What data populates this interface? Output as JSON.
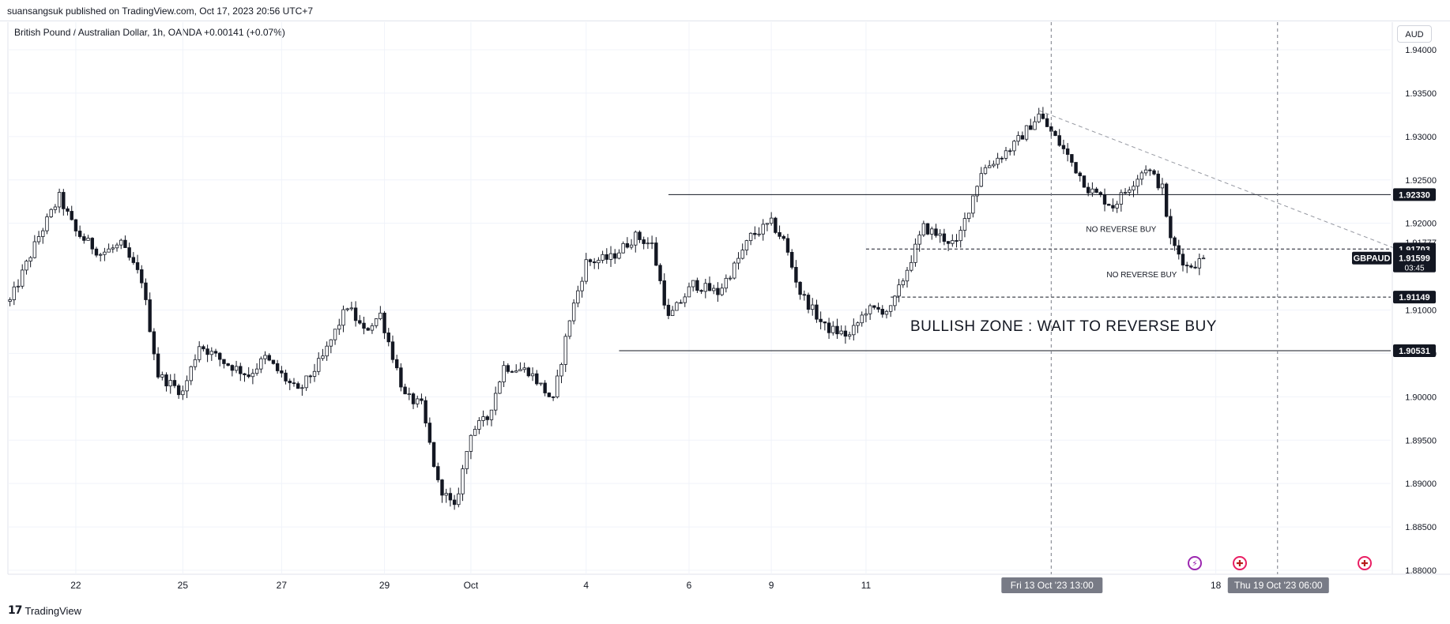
{
  "header": {
    "published": "suansangsuk published on TradingView.com, Oct 17, 2023 20:56 UTC+7"
  },
  "symbol_line": "British Pound / Australian Dollar, 1h, OANDA  +0.00141 (+0.07%)",
  "currency_button": "AUD",
  "footer": {
    "logo": "17",
    "brand": "TradingView"
  },
  "events": [
    {
      "icon": "lightning-icon",
      "glyph": "⚡"
    },
    {
      "icon": "uk-flag-icon",
      "glyph": "✚"
    },
    {
      "icon": "uk-flag-icon",
      "glyph": "✚"
    }
  ],
  "colors": {
    "background": "#ffffff",
    "grid": "#f0f3fa",
    "candle": "#131722",
    "label_bg": "#131722",
    "label_fg": "#ffffff",
    "time_label_bg": "#787b86",
    "trendline": "#9598a1"
  },
  "chart_data": {
    "type": "candlestick",
    "symbol": "GBPAUD",
    "interval": "1h",
    "exchange": "OANDA",
    "ylim": [
      1.88,
      1.94
    ],
    "yticks": [
      "1.94000",
      "1.93500",
      "1.93000",
      "1.92500",
      "1.92000",
      "1.91777",
      "1.91000",
      "1.90500",
      "1.90000",
      "1.89500",
      "1.89000",
      "1.88500",
      "1.88000"
    ],
    "ytick_values": [
      1.94,
      1.935,
      1.93,
      1.925,
      1.92,
      1.91777,
      1.91,
      1.905,
      1.9,
      1.895,
      1.89,
      1.885,
      1.88
    ],
    "xticks": [
      "22",
      "25",
      "27",
      "29",
      "Oct",
      "4",
      "6",
      "9",
      "11",
      "18"
    ],
    "xtick_bars": [
      16,
      42,
      66,
      91,
      112,
      140,
      165,
      185,
      208,
      293
    ],
    "total_bars": 336,
    "anchors": [
      [
        0,
        1.911
      ],
      [
        7,
        1.9185
      ],
      [
        12,
        1.923
      ],
      [
        16,
        1.919
      ],
      [
        22,
        1.9165
      ],
      [
        27,
        1.9175
      ],
      [
        32,
        1.9135
      ],
      [
        36,
        1.9025
      ],
      [
        42,
        1.9005
      ],
      [
        46,
        1.906
      ],
      [
        52,
        1.904
      ],
      [
        58,
        1.9025
      ],
      [
        62,
        1.9045
      ],
      [
        66,
        1.9025
      ],
      [
        70,
        1.9005
      ],
      [
        76,
        1.9045
      ],
      [
        82,
        1.9105
      ],
      [
        86,
        1.9075
      ],
      [
        90,
        1.9095
      ],
      [
        96,
        1.9
      ],
      [
        100,
        1.899
      ],
      [
        104,
        1.89
      ],
      [
        108,
        1.887
      ],
      [
        112,
        1.896
      ],
      [
        116,
        1.8975
      ],
      [
        120,
        1.9035
      ],
      [
        126,
        1.903
      ],
      [
        132,
        1.8995
      ],
      [
        136,
        1.909
      ],
      [
        140,
        1.9155
      ],
      [
        146,
        1.916
      ],
      [
        152,
        1.9185
      ],
      [
        156,
        1.9175
      ],
      [
        160,
        1.909
      ],
      [
        166,
        1.913
      ],
      [
        172,
        1.912
      ],
      [
        176,
        1.915
      ],
      [
        180,
        1.9185
      ],
      [
        185,
        1.92
      ],
      [
        188,
        1.918
      ],
      [
        192,
        1.912
      ],
      [
        198,
        1.908
      ],
      [
        204,
        1.907
      ],
      [
        208,
        1.91
      ],
      [
        214,
        1.91
      ],
      [
        222,
        1.9195
      ],
      [
        230,
        1.9175
      ],
      [
        236,
        1.926
      ],
      [
        244,
        1.929
      ],
      [
        250,
        1.9325
      ],
      [
        256,
        1.9285
      ],
      [
        262,
        1.924
      ],
      [
        268,
        1.922
      ],
      [
        276,
        1.9265
      ],
      [
        280,
        1.924
      ],
      [
        282,
        1.918
      ],
      [
        286,
        1.915
      ],
      [
        290,
        1.9158
      ]
    ],
    "horizontal_levels": [
      {
        "price": 1.9233,
        "label": "1.92330",
        "style": "solid",
        "from_bar": 160
      },
      {
        "price": 1.91703,
        "label": "1.91703",
        "style": "dashed",
        "from_bar": 208
      },
      {
        "price": 1.91149,
        "label": "1.91149",
        "style": "dashed",
        "from_bar": 214
      },
      {
        "price": 1.90531,
        "label": "1.90531",
        "style": "solid",
        "from_bar": 148
      }
    ],
    "last_price": {
      "symbol": "GBPAUD",
      "price": "1.91599",
      "countdown": "03:45",
      "value": 1.91599
    },
    "trendline": {
      "from": [
        250,
        1.933
      ],
      "to": [
        336,
        1.9172
      ],
      "style": "dashed"
    },
    "vertical_lines": [
      {
        "bar": 253,
        "label": "Fri 13 Oct '23   13:00"
      },
      {
        "bar": 308,
        "label": "Thu 19 Oct '23   06:00"
      }
    ],
    "annotations": [
      {
        "text": "NO REVERSE BUY",
        "bar": 270,
        "price": 1.919
      },
      {
        "text": "NO REVERSE BUY",
        "bar": 275,
        "price": 1.9138
      },
      {
        "text": "BULLISH ZONE : WAIT TO REVERSE BUY",
        "bar": 256,
        "price": 1.9076
      }
    ]
  }
}
